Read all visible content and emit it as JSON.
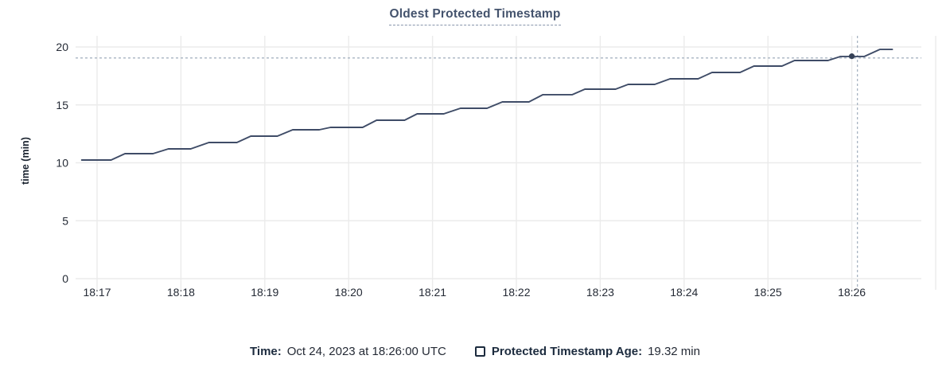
{
  "chart": {
    "title": "Oldest Protected Timestamp",
    "y_axis_label": "time (min)"
  },
  "legend": {
    "time_label": "Time:",
    "time_value": "Oct 24, 2023 at 18:26:00 UTC",
    "series_label": "Protected Timestamp Age:",
    "series_value": "19.32 min",
    "series_checkbox_checked": false
  },
  "colors": {
    "line": "#3f4c67",
    "dot": "#344056",
    "grid": "#ebebeb",
    "crosshair": "#a8b4c2",
    "tick_text": "#242a35",
    "title_text": "#44536d"
  },
  "chart_data": {
    "type": "line",
    "title": "Oldest Protected Timestamp",
    "xlabel": "",
    "ylabel": "time (min)",
    "ylim": [
      0,
      20
    ],
    "y_ticks": [
      0,
      5,
      10,
      15,
      20
    ],
    "x_ticks": [
      "18:17",
      "18:18",
      "18:19",
      "18:20",
      "18:21",
      "18:22",
      "18:23",
      "18:24",
      "18:25",
      "18:26"
    ],
    "grid": true,
    "legend_position": "bottom",
    "series": [
      {
        "name": "Protected Timestamp Age",
        "unit": "min",
        "points": [
          [
            "18:16:49",
            10.24
          ],
          [
            "18:17:10",
            10.24
          ],
          [
            "18:17:20",
            10.79
          ],
          [
            "18:17:40",
            10.79
          ],
          [
            "18:17:51",
            11.2
          ],
          [
            "18:18:07",
            11.2
          ],
          [
            "18:18:20",
            11.75
          ],
          [
            "18:18:40",
            11.75
          ],
          [
            "18:18:50",
            12.3
          ],
          [
            "18:19:09",
            12.3
          ],
          [
            "18:19:20",
            12.85
          ],
          [
            "18:19:39",
            12.85
          ],
          [
            "18:19:47",
            13.06
          ],
          [
            "18:20:10",
            13.06
          ],
          [
            "18:20:20",
            13.68
          ],
          [
            "18:20:40",
            13.68
          ],
          [
            "18:20:49",
            14.23
          ],
          [
            "18:21:08",
            14.23
          ],
          [
            "18:21:20",
            14.71
          ],
          [
            "18:21:39",
            14.71
          ],
          [
            "18:21:50",
            15.26
          ],
          [
            "18:22:09",
            15.26
          ],
          [
            "18:22:19",
            15.88
          ],
          [
            "18:22:40",
            15.88
          ],
          [
            "18:22:49",
            16.36
          ],
          [
            "18:23:11",
            16.36
          ],
          [
            "18:23:20",
            16.77
          ],
          [
            "18:23:39",
            16.77
          ],
          [
            "18:23:50",
            17.25
          ],
          [
            "18:24:10",
            17.25
          ],
          [
            "18:24:20",
            17.8
          ],
          [
            "18:24:40",
            17.8
          ],
          [
            "18:24:50",
            18.35
          ],
          [
            "18:25:10",
            18.35
          ],
          [
            "18:25:19",
            18.83
          ],
          [
            "18:25:43",
            18.83
          ],
          [
            "18:25:52",
            19.18
          ],
          [
            "18:26:09",
            19.18
          ],
          [
            "18:26:20",
            19.79
          ],
          [
            "18:26:29",
            19.79
          ]
        ]
      }
    ],
    "hover": {
      "time": "Oct 24, 2023 at 18:26:00 UTC",
      "value": 19.32,
      "marker": {
        "time": "18:26:00",
        "value": 19.2
      },
      "crosshair": {
        "time": "18:26:04",
        "value": 19.05
      }
    }
  }
}
